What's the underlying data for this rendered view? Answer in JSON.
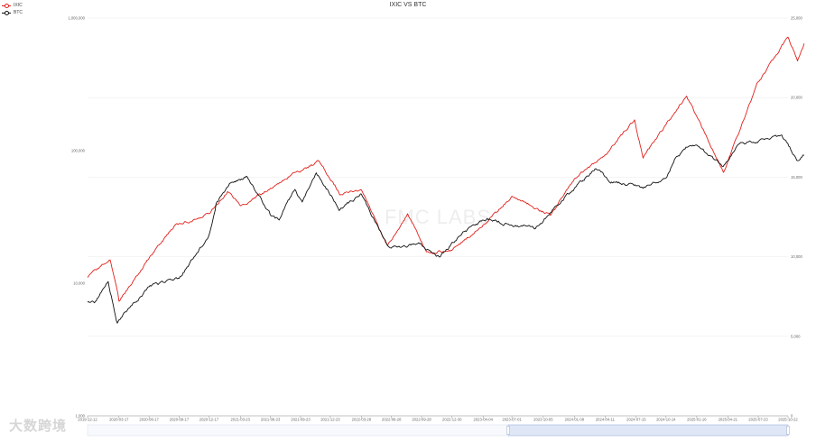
{
  "chart_data": {
    "type": "line",
    "title": "IXIC VS BTC",
    "watermark": "FMC LABS",
    "logo_text": "大数跨境",
    "x_ticks": [
      "2019-12-12",
      "2020-03-17",
      "2020-06-17",
      "2020-09-17",
      "2020-12-17",
      "2021-03-23",
      "2021-06-23",
      "2021-09-23",
      "2021-12-23",
      "2022-03-28",
      "2022-06-28",
      "2022-09-28",
      "2022-12-30",
      "2023-04-04",
      "2023-07-01",
      "2023-10-05",
      "2024-01-08",
      "2024-04-11",
      "2024-07-15",
      "2024-10-14",
      "2025-01-16",
      "2025-04-21",
      "2025-07-23",
      "2025-10-22"
    ],
    "y_left": {
      "scale": "log",
      "ticks": [
        "1,000,000",
        "100,000",
        "10,000",
        "1,000"
      ],
      "tick_values": [
        1000000,
        100000,
        10000,
        1000
      ],
      "range": [
        1000,
        1000000
      ]
    },
    "y_right": {
      "scale": "linear",
      "ticks": [
        "25,000",
        "20,000",
        "15,000",
        "10,000",
        "5,000",
        "0"
      ],
      "tick_values": [
        25000,
        20000,
        15000,
        10000,
        5000,
        0
      ],
      "range": [
        0,
        25000
      ]
    },
    "legend_position": "top-left",
    "grid": true,
    "series": [
      {
        "name": "IXIC",
        "axis": "right",
        "color": "#e0201b",
        "x": [
          "2019-12-12",
          "2020-02-19",
          "2020-03-17",
          "2020-06-17",
          "2020-09-01",
          "2020-12-17",
          "2021-02-12",
          "2021-03-23",
          "2021-06-23",
          "2021-09-07",
          "2021-11-19",
          "2022-01-24",
          "2022-03-28",
          "2022-06-16",
          "2022-08-16",
          "2022-10-13",
          "2022-12-30",
          "2023-04-04",
          "2023-07-01",
          "2023-10-27",
          "2024-01-08",
          "2024-04-11",
          "2024-07-10",
          "2024-08-05",
          "2024-10-14",
          "2024-12-16",
          "2025-04-08",
          "2025-07-23",
          "2025-10-22",
          "2025-11-20",
          "2025-12-10"
        ],
        "values": [
          8700,
          9800,
          7200,
          9900,
          11900,
          12700,
          14100,
          13200,
          14300,
          15300,
          16000,
          13900,
          14200,
          10700,
          12700,
          10300,
          10400,
          12000,
          13800,
          12600,
          14900,
          16400,
          18600,
          16200,
          18300,
          20100,
          15300,
          21000,
          23800,
          22300,
          23400
        ]
      },
      {
        "name": "BTC",
        "axis": "left",
        "color": "#111111",
        "x": [
          "2019-12-12",
          "2020-01-05",
          "2020-02-13",
          "2020-03-12",
          "2020-03-17",
          "2020-06-17",
          "2020-09-17",
          "2020-12-17",
          "2021-01-08",
          "2021-02-21",
          "2021-04-13",
          "2021-06-22",
          "2021-07-20",
          "2021-09-06",
          "2021-09-28",
          "2021-11-10",
          "2022-01-22",
          "2022-03-28",
          "2022-06-18",
          "2022-09-28",
          "2022-11-21",
          "2023-01-30",
          "2023-04-14",
          "2023-09-11",
          "2023-12-08",
          "2024-03-14",
          "2024-05-01",
          "2024-07-05",
          "2024-08-05",
          "2024-10-14",
          "2024-11-12",
          "2024-12-17",
          "2025-01-20",
          "2025-04-07",
          "2025-05-22",
          "2025-08-14",
          "2025-10-06",
          "2025-11-21",
          "2025-12-10"
        ],
        "values": [
          7200,
          7300,
          10300,
          5000,
          5300,
          9400,
          10900,
          23000,
          40000,
          57000,
          63500,
          33000,
          30000,
          51000,
          41000,
          68000,
          36000,
          47000,
          19000,
          19500,
          15800,
          23800,
          30300,
          25800,
          43900,
          73000,
          58000,
          56000,
          52000,
          62000,
          88000,
          106000,
          108000,
          76000,
          111000,
          123000,
          125000,
          84000,
          92000
        ]
      }
    ]
  }
}
